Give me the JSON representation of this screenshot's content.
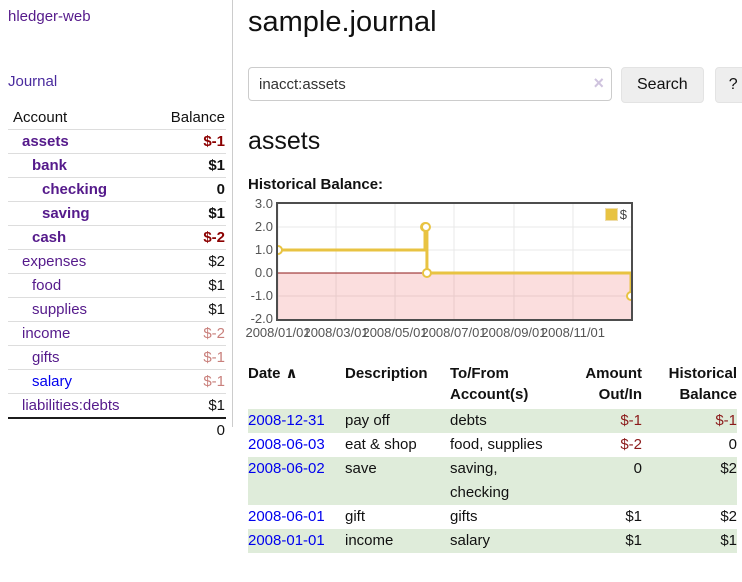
{
  "app": {
    "name": "hledger-web"
  },
  "sidebar": {
    "nav_journal": "Journal",
    "accounts_table": {
      "headers": [
        "Account",
        "Balance"
      ],
      "rows": [
        {
          "account": "assets",
          "indent": 0,
          "bold": true,
          "balance": "$-1",
          "balance_class": "neg"
        },
        {
          "account": "bank",
          "indent": 1,
          "bold": true,
          "balance": "$1",
          "balance_class": "pos"
        },
        {
          "account": "checking",
          "indent": 2,
          "bold": true,
          "balance": "0",
          "balance_class": "pos"
        },
        {
          "account": "saving",
          "indent": 2,
          "bold": true,
          "balance": "$1",
          "balance_class": "pos"
        },
        {
          "account": "cash",
          "indent": 1,
          "bold": true,
          "balance": "$-2",
          "balance_class": "neg"
        },
        {
          "account": "expenses",
          "indent": 0,
          "bold": false,
          "balance": "$2",
          "balance_class": "pos"
        },
        {
          "account": "food",
          "indent": 1,
          "bold": false,
          "balance": "$1",
          "balance_class": "pos"
        },
        {
          "account": "supplies",
          "indent": 1,
          "bold": false,
          "balance": "$1",
          "balance_class": "pos"
        },
        {
          "account": "income",
          "indent": 0,
          "bold": false,
          "balance": "$-2",
          "balance_class": "neg-dim"
        },
        {
          "account": "gifts",
          "indent": 1,
          "bold": false,
          "balance": "$-1",
          "balance_class": "neg-dim"
        },
        {
          "account": "salary",
          "indent": 1,
          "bold": false,
          "blue": true,
          "balance": "$-1",
          "balance_class": "neg-dim"
        },
        {
          "account": "liabilities:debts",
          "indent": 0,
          "bold": false,
          "balance": "$1",
          "balance_class": "pos"
        }
      ],
      "total": "0"
    }
  },
  "main": {
    "title": "sample.journal",
    "search": {
      "value": "inacct:assets",
      "clear_icon": "×",
      "button_label": "Search",
      "help_label": "?"
    },
    "account_heading": "assets",
    "chart_label": "Historical Balance:"
  },
  "chart_data": {
    "type": "line",
    "title": "Historical Balance",
    "step": true,
    "x_start": "2008-01-01",
    "x_end": "2008-12-31",
    "xticks": [
      "2008/01/01",
      "2008/03/01",
      "2008/05/01",
      "2008/07/01",
      "2008/09/01",
      "2008/11/01"
    ],
    "yticks": [
      "3.0",
      "2.0",
      "1.0",
      "0.0",
      "-1.0",
      "-2.0"
    ],
    "ylim": [
      -2,
      3
    ],
    "grid": true,
    "grid_color": "#e8e8e8",
    "negative_region_fill": "rgba(235,90,90,0.20)",
    "zero_line_color": "#8c1717",
    "series": [
      {
        "name": "$",
        "color": "#e8c342",
        "points": [
          [
            "2008-01-01",
            1
          ],
          [
            "2008-06-01",
            2
          ],
          [
            "2008-06-02",
            2
          ],
          [
            "2008-06-03",
            0
          ],
          [
            "2008-12-31",
            -1
          ]
        ]
      }
    ],
    "legend": {
      "position": "top-right",
      "label": "$"
    }
  },
  "register_table": {
    "headers": [
      "Date",
      "Description",
      "To/From\nAccount(s)",
      "Amount\nOut/In",
      "Historical\nBalance"
    ],
    "sort_icon": "∧",
    "rows": [
      {
        "date": "2008-12-31",
        "description": "pay off",
        "account_lines": [
          "debts"
        ],
        "amount": "$-1",
        "amount_neg": true,
        "balance": "$-1",
        "balance_neg": true
      },
      {
        "date": "2008-06-03",
        "description": "eat & shop",
        "account_lines": [
          "food, supplies"
        ],
        "amount": "$-2",
        "amount_neg": true,
        "balance": "0",
        "balance_neg": false
      },
      {
        "date": "2008-06-02",
        "description": "save",
        "account_lines": [
          "saving,",
          "checking"
        ],
        "amount": "0",
        "amount_neg": false,
        "balance": "$2",
        "balance_neg": false
      },
      {
        "date": "2008-06-01",
        "description": "gift",
        "account_lines": [
          "gifts"
        ],
        "amount": "$1",
        "amount_neg": false,
        "balance": "$2",
        "balance_neg": false
      },
      {
        "date": "2008-01-01",
        "description": "income",
        "account_lines": [
          "salary"
        ],
        "amount": "$1",
        "amount_neg": false,
        "balance": "$1",
        "balance_neg": false
      }
    ]
  }
}
